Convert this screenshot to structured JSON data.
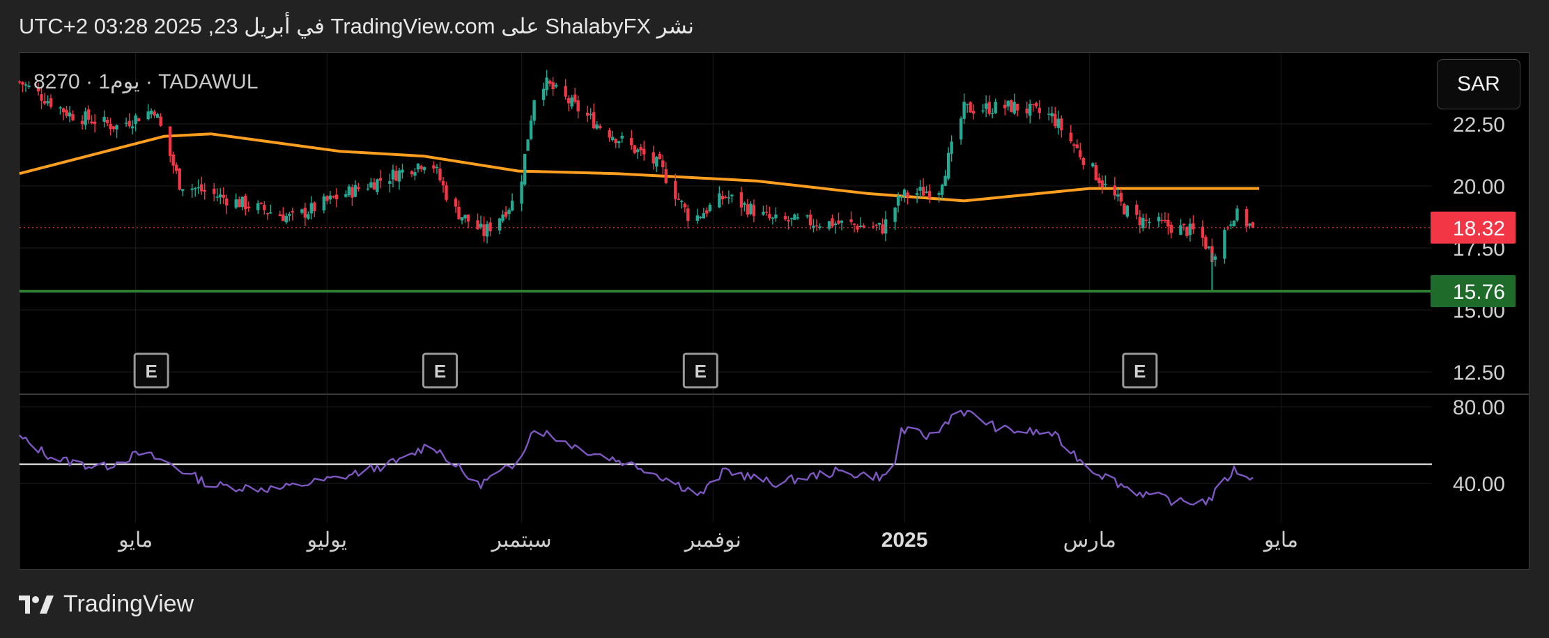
{
  "header": {
    "text": "نشر ShalabyFX على TradingView.com في أبريل 23, 2025 03:28 UTC+2"
  },
  "symbol": {
    "label": "8270 · 1يوم · TADAWUL"
  },
  "currency_button": {
    "label": "SAR"
  },
  "footer": {
    "brand": "TradingView"
  },
  "colors": {
    "bull": "#22ab94",
    "bear": "#f23645",
    "ma_line": "#ff9e1f",
    "support_line": "#2e7d32",
    "rsi_line": "#7e57c2",
    "rsi_mid_line": "#ffffff",
    "current_price_tag": "#f23645",
    "support_tag": "#1e6b2a"
  },
  "chart_data": [
    {
      "type": "candlestick",
      "panel": "price",
      "y_ticks": [
        "22.50",
        "20.00",
        "17.50",
        "15.00",
        "12.50"
      ],
      "x_ticks": [
        "مايو",
        "يوليو",
        "سبتمبر",
        "نوفمبر",
        "2025",
        "مارس",
        "مايو"
      ],
      "ylim": [
        11.6,
        24.9
      ],
      "grid": true,
      "current_price": 18.32,
      "current_price_label": "18.32",
      "support_level": 15.76,
      "support_label": "15.76",
      "earnings_marker_label": "E",
      "earnings_markers": [
        "2024-05-06",
        "2024-08-06",
        "2024-10-28",
        "2025-03-17"
      ],
      "price_path_anchors": [
        {
          "date": "2024-03-25",
          "close": 24.2
        },
        {
          "date": "2024-04-10",
          "close": 22.9
        },
        {
          "date": "2024-04-25",
          "close": 22.4
        },
        {
          "date": "2024-05-07",
          "close": 23.1
        },
        {
          "date": "2024-05-15",
          "close": 20.1
        },
        {
          "date": "2024-06-01",
          "close": 19.4
        },
        {
          "date": "2024-06-20",
          "close": 18.7
        },
        {
          "date": "2024-07-05",
          "close": 19.6
        },
        {
          "date": "2024-07-25",
          "close": 20.6
        },
        {
          "date": "2024-08-03",
          "close": 21.1
        },
        {
          "date": "2024-08-10",
          "close": 19.1
        },
        {
          "date": "2024-08-20",
          "close": 18.1
        },
        {
          "date": "2024-08-31",
          "close": 19.6
        },
        {
          "date": "2024-09-06",
          "close": 24.4
        },
        {
          "date": "2024-09-25",
          "close": 22.5
        },
        {
          "date": "2024-10-15",
          "close": 20.8
        },
        {
          "date": "2024-10-25",
          "close": 18.6
        },
        {
          "date": "2024-11-05",
          "close": 19.6
        },
        {
          "date": "2024-11-20",
          "close": 18.6
        },
        {
          "date": "2024-12-10",
          "close": 18.5
        },
        {
          "date": "2024-12-25",
          "close": 18.3
        },
        {
          "date": "2024-12-31",
          "close": 19.6
        },
        {
          "date": "2025-01-12",
          "close": 19.9
        },
        {
          "date": "2025-01-20",
          "close": 23.1
        },
        {
          "date": "2025-02-05",
          "close": 23.2
        },
        {
          "date": "2025-02-17",
          "close": 22.8
        },
        {
          "date": "2025-03-07",
          "close": 19.8
        },
        {
          "date": "2025-03-15",
          "close": 18.7
        },
        {
          "date": "2025-04-05",
          "close": 18.1
        },
        {
          "date": "2025-04-09",
          "close": 17.2
        },
        {
          "date": "2025-04-16",
          "close": 18.9
        },
        {
          "date": "2025-04-22",
          "close": 18.32
        }
      ],
      "moving_average": [
        {
          "date": "2024-03-25",
          "value": 20.5
        },
        {
          "date": "2024-05-10",
          "value": 22.0
        },
        {
          "date": "2024-05-25",
          "value": 22.1
        },
        {
          "date": "2024-07-05",
          "value": 21.4
        },
        {
          "date": "2024-08-01",
          "value": 21.2
        },
        {
          "date": "2024-08-31",
          "value": 20.6
        },
        {
          "date": "2024-10-01",
          "value": 20.5
        },
        {
          "date": "2024-11-15",
          "value": 20.2
        },
        {
          "date": "2024-12-20",
          "value": 19.7
        },
        {
          "date": "2025-01-20",
          "value": 19.4
        },
        {
          "date": "2025-03-01",
          "value": 19.9
        },
        {
          "date": "2025-04-24",
          "value": 19.9
        }
      ]
    },
    {
      "type": "line",
      "panel": "rsi",
      "name": "",
      "y_ticks": [
        "80.00",
        "40.00"
      ],
      "ylim": [
        24,
        86
      ],
      "midline": 50,
      "values": [
        {
          "date": "2024-03-25",
          "value": 64
        },
        {
          "date": "2024-04-05",
          "value": 53
        },
        {
          "date": "2024-04-20",
          "value": 48
        },
        {
          "date": "2024-05-03",
          "value": 56
        },
        {
          "date": "2024-05-12",
          "value": 50
        },
        {
          "date": "2024-05-25",
          "value": 39
        },
        {
          "date": "2024-06-15",
          "value": 37
        },
        {
          "date": "2024-07-05",
          "value": 43
        },
        {
          "date": "2024-07-25",
          "value": 52
        },
        {
          "date": "2024-08-03",
          "value": 61
        },
        {
          "date": "2024-08-18",
          "value": 39
        },
        {
          "date": "2024-08-30",
          "value": 50
        },
        {
          "date": "2024-09-05",
          "value": 69
        },
        {
          "date": "2024-09-20",
          "value": 58
        },
        {
          "date": "2024-10-10",
          "value": 48
        },
        {
          "date": "2024-10-28",
          "value": 34
        },
        {
          "date": "2024-11-05",
          "value": 47
        },
        {
          "date": "2024-11-20",
          "value": 40
        },
        {
          "date": "2024-12-10",
          "value": 46
        },
        {
          "date": "2024-12-28",
          "value": 43
        },
        {
          "date": "2024-12-31",
          "value": 68
        },
        {
          "date": "2025-01-10",
          "value": 64
        },
        {
          "date": "2025-01-18",
          "value": 79
        },
        {
          "date": "2025-02-01",
          "value": 68
        },
        {
          "date": "2025-02-17",
          "value": 66
        },
        {
          "date": "2025-03-01",
          "value": 48
        },
        {
          "date": "2025-03-15",
          "value": 36
        },
        {
          "date": "2025-03-30",
          "value": 30
        },
        {
          "date": "2025-04-08",
          "value": 31
        },
        {
          "date": "2025-04-16",
          "value": 47
        },
        {
          "date": "2025-04-22",
          "value": 43
        }
      ]
    }
  ]
}
